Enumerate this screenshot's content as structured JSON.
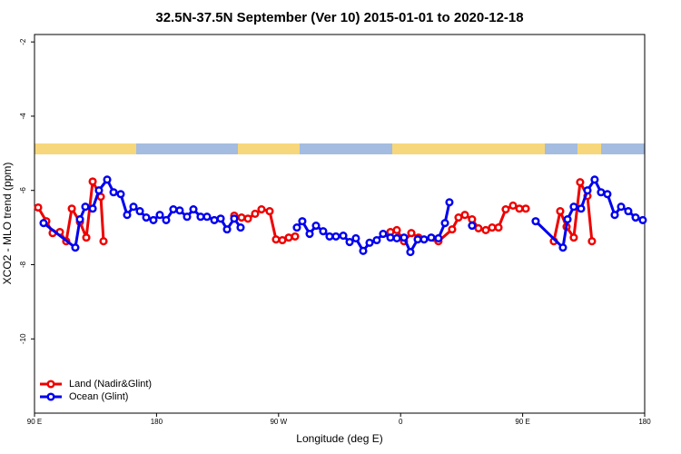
{
  "chart_data": {
    "type": "line",
    "title": "32.5N-37.5N September (Ver 10)   2015-01-01 to 2020-12-18",
    "x_label": "Longitude (deg E)",
    "y_label": "XCO2 - MLO trend (ppm)",
    "xlim": [
      90,
      540
    ],
    "ylim": [
      -12,
      -1.8
    ],
    "xticks": [
      {
        "value": 90,
        "label": "90 E"
      },
      180,
      {
        "value": 270,
        "label": "90 W"
      },
      {
        "value": 360,
        "label": "0"
      },
      {
        "value": 450,
        "label": "90 E"
      },
      {
        "value": 540,
        "label": "180"
      }
    ],
    "yticks": [
      -2,
      -4,
      -6,
      -8,
      -10
    ],
    "grid": false,
    "legend": "bottom-left",
    "series": [
      {
        "name": "Land (Nadir&Glint)",
        "color": "#ee0000",
        "x": [
          92.7,
          98.7,
          103.4,
          108.7,
          113.4,
          117.5,
          123.5,
          128.2,
          132.9,
          138.9,
          140.9,
          null,
          237.3,
          242.7,
          247.4,
          252.7,
          257.4,
          263.4,
          268.1,
          272.8,
          277.5,
          282.2,
          null,
          352.5,
          357.2,
          362.5,
          367.9,
          373.2,
          387.9,
          398.0,
          402.7,
          407.4,
          412.7,
          417.4,
          422.8,
          427.5,
          432.2,
          437.5,
          442.9,
          447.6,
          452.3,
          null,
          473.0,
          477.7,
          482.4,
          487.7,
          492.4,
          497.8,
          501.1
        ],
        "values": [
          -6.46,
          -6.83,
          -7.15,
          -7.12,
          -7.37,
          -6.49,
          -6.85,
          -7.27,
          -5.76,
          -6.17,
          -7.37,
          null,
          -6.68,
          -6.73,
          -6.76,
          -6.63,
          -6.51,
          -6.56,
          -7.32,
          -7.34,
          -7.27,
          -7.24,
          null,
          -7.12,
          -7.07,
          -7.37,
          -7.15,
          -7.27,
          -7.37,
          -7.05,
          -6.73,
          -6.66,
          -6.78,
          -7.02,
          -7.07,
          -7.0,
          -7.0,
          -6.51,
          -6.41,
          -6.49,
          -6.49,
          null,
          -7.37,
          -6.56,
          -6.98,
          -7.27,
          -5.78,
          -6.15,
          -7.37
        ]
      },
      {
        "name": "Ocean (Glint)",
        "color": "#0000ee",
        "x": [
          96.7,
          120.1,
          123.5,
          127.5,
          132.9,
          137.5,
          143.6,
          148.3,
          153.6,
          158.3,
          163.0,
          167.7,
          172.4,
          177.7,
          182.4,
          187.1,
          192.4,
          197.1,
          202.5,
          207.2,
          212.5,
          217.2,
          222.6,
          227.3,
          232.0,
          237.3,
          242.0,
          null,
          283.5,
          287.5,
          292.9,
          297.6,
          302.9,
          307.6,
          312.3,
          317.7,
          322.4,
          327.0,
          332.4,
          337.1,
          342.4,
          347.1,
          352.5,
          357.2,
          362.5,
          367.2,
          372.6,
          377.3,
          382.6,
          387.9,
          392.7,
          396.0,
          null,
          412.7,
          null,
          459.6,
          479.7,
          483.1,
          487.7,
          493.1,
          497.8,
          503.1,
          507.8,
          512.5,
          517.9,
          522.6,
          527.9,
          533.3,
          538.6
        ],
        "values": [
          -6.88,
          -7.54,
          -6.78,
          -6.44,
          -6.49,
          -6.0,
          -5.71,
          -6.05,
          -6.1,
          -6.66,
          -6.44,
          -6.56,
          -6.73,
          -6.8,
          -6.66,
          -6.8,
          -6.51,
          -6.54,
          -6.71,
          -6.51,
          -6.71,
          -6.71,
          -6.8,
          -6.76,
          -7.05,
          -6.76,
          -7.0,
          null,
          -7.0,
          -6.83,
          -7.17,
          -6.95,
          -7.1,
          -7.24,
          -7.24,
          -7.22,
          -7.39,
          -7.29,
          -7.63,
          -7.41,
          -7.34,
          -7.17,
          -7.27,
          -7.29,
          -7.27,
          -7.66,
          -7.32,
          -7.32,
          -7.27,
          -7.29,
          -6.88,
          -6.32,
          null,
          -6.95,
          null,
          -6.83,
          -7.54,
          -6.78,
          -6.44,
          -6.49,
          -6.0,
          -5.71,
          -6.05,
          -6.1,
          -6.66,
          -6.44,
          -6.56,
          -6.73,
          -6.8
        ]
      }
    ]
  }
}
